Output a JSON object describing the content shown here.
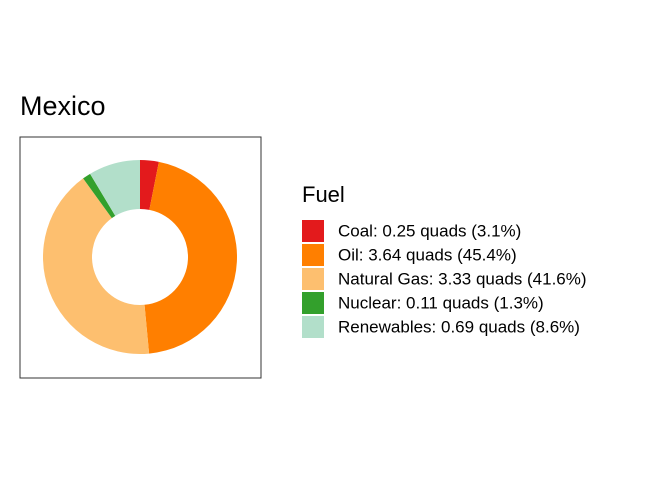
{
  "chart_data": {
    "type": "donut",
    "title": "Mexico",
    "legend_title": "Fuel",
    "categories": [
      "Coal: 0.25 quads (3.1%)",
      "Oil: 3.64 quads (45.4%)",
      "Natural Gas: 3.33 quads (41.6%)",
      "Nuclear: 0.11 quads (1.3%)",
      "Renewables: 0.69 quads (8.6%)"
    ],
    "values": [
      0.25,
      3.64,
      3.33,
      0.11,
      0.69
    ],
    "colors": [
      "#e31a1c",
      "#ff7f00",
      "#fdbf6f",
      "#33a02c",
      "#b2dfca"
    ],
    "legend": "right"
  }
}
